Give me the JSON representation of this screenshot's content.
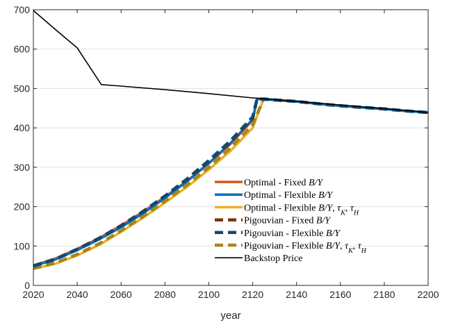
{
  "chart_data": {
    "type": "line",
    "title": "",
    "xlabel": "year",
    "ylabel": "",
    "xlim": [
      2020,
      2200
    ],
    "ylim": [
      0,
      700
    ],
    "xticks": [
      2020,
      2040,
      2060,
      2080,
      2100,
      2120,
      2140,
      2160,
      2180,
      2200
    ],
    "yticks": [
      0,
      100,
      200,
      300,
      400,
      500,
      600,
      700
    ],
    "grid": "horizontal",
    "legend_position": "bottom-right",
    "series": [
      {
        "name": "Optimal - Fixed B/Y",
        "color": "#d95319",
        "dash": "solid",
        "x": [
          2020,
          2030,
          2040,
          2050,
          2060,
          2070,
          2080,
          2090,
          2100,
          2110,
          2120,
          2122,
          2130,
          2140,
          2150,
          2160,
          2170,
          2180,
          2190,
          2200
        ],
        "y": [
          50,
          68,
          93,
          120,
          152,
          187,
          225,
          265,
          310,
          360,
          420,
          474,
          471,
          467,
          461,
          456,
          452,
          448,
          443,
          439
        ]
      },
      {
        "name": "Optimal - Flexible B/Y",
        "color": "#0072bd",
        "dash": "solid",
        "x": [
          2020,
          2030,
          2040,
          2050,
          2060,
          2070,
          2080,
          2090,
          2100,
          2110,
          2120,
          2122,
          2130,
          2140,
          2150,
          2160,
          2170,
          2180,
          2190,
          2200
        ],
        "y": [
          49,
          66,
          90,
          117,
          148,
          183,
          222,
          264,
          310,
          362,
          422,
          474,
          471,
          467,
          461,
          456,
          452,
          448,
          443,
          439
        ]
      },
      {
        "name": "Optimal - Flexible B/Y, τK, τH",
        "color": "#edb120",
        "dash": "solid",
        "x": [
          2020,
          2030,
          2040,
          2050,
          2060,
          2070,
          2080,
          2090,
          2100,
          2110,
          2120,
          2125,
          2130,
          2140,
          2150,
          2160,
          2170,
          2180,
          2190,
          2200
        ],
        "y": [
          42,
          55,
          76,
          103,
          136,
          172,
          210,
          250,
          294,
          342,
          400,
          474,
          471,
          467,
          461,
          456,
          452,
          448,
          443,
          439
        ]
      },
      {
        "name": "Pigouvian - Fixed B/Y",
        "color": "#7e2f0e",
        "dash": "dashed",
        "x": [
          2020,
          2030,
          2040,
          2050,
          2060,
          2070,
          2080,
          2090,
          2100,
          2110,
          2120,
          2122,
          2130,
          2140,
          2150,
          2160,
          2170,
          2180,
          2190,
          2200
        ],
        "y": [
          50,
          67,
          92,
          120,
          152,
          188,
          227,
          268,
          314,
          364,
          424,
          474,
          471,
          467,
          461,
          456,
          452,
          448,
          443,
          439
        ]
      },
      {
        "name": "Pigouvian - Flexible B/Y",
        "color": "#0d4a78",
        "dash": "dashed",
        "x": [
          2020,
          2030,
          2040,
          2050,
          2060,
          2070,
          2080,
          2090,
          2100,
          2110,
          2120,
          2122,
          2130,
          2140,
          2150,
          2160,
          2170,
          2180,
          2190,
          2200
        ],
        "y": [
          49,
          66,
          91,
          119,
          151,
          187,
          227,
          270,
          317,
          368,
          428,
          474,
          471,
          467,
          461,
          456,
          452,
          448,
          443,
          439
        ]
      },
      {
        "name": "Pigouvian - Flexible B/Y, τK, τH",
        "color": "#a6851f",
        "dash": "dashed",
        "x": [
          2020,
          2030,
          2040,
          2050,
          2060,
          2070,
          2080,
          2090,
          2100,
          2110,
          2120,
          2125,
          2130,
          2140,
          2150,
          2160,
          2170,
          2180,
          2190,
          2200
        ],
        "y": [
          43,
          57,
          79,
          106,
          139,
          175,
          214,
          255,
          300,
          350,
          408,
          474,
          471,
          467,
          461,
          456,
          452,
          448,
          443,
          439
        ]
      },
      {
        "name": "Backstop Price",
        "color": "#000000",
        "dash": "solid",
        "x": [
          2020,
          2030,
          2040,
          2051,
          2060,
          2080,
          2100,
          2120,
          2140,
          2160,
          2180,
          2200
        ],
        "y": [
          698,
          650,
          603,
          510,
          506,
          497,
          487,
          476,
          467,
          458,
          449,
          439
        ]
      }
    ],
    "legend": [
      {
        "pre": "Optimal - Fixed ",
        "math": "B/Y",
        "taus": false
      },
      {
        "pre": "Optimal - Flexible ",
        "math": "B/Y",
        "taus": false
      },
      {
        "pre": "Optimal - Flexible ",
        "math": "B/Y",
        "taus": true
      },
      {
        "pre": "Pigouvian - Fixed ",
        "math": "B/Y",
        "taus": false
      },
      {
        "pre": "Pigouvian - Flexible ",
        "math": "B/Y",
        "taus": false
      },
      {
        "pre": "Pigouvian - Flexible ",
        "math": "B/Y",
        "taus": true
      },
      {
        "pre": "Backstop Price",
        "math": "",
        "taus": false
      }
    ],
    "tau_symbol": "τ",
    "tau_sub_k": "K",
    "tau_sub_h": "H"
  }
}
